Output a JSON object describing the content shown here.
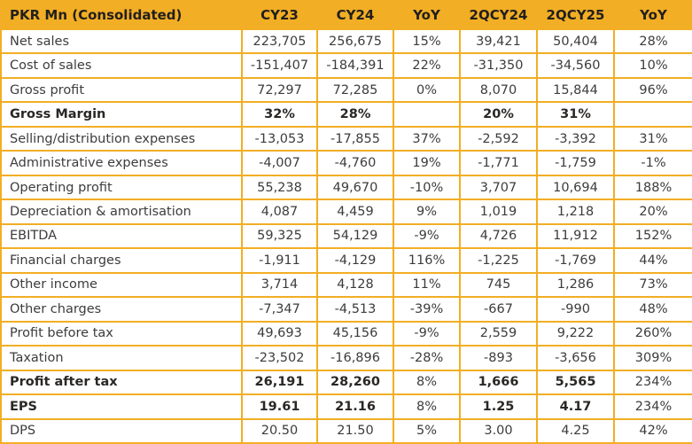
{
  "colors": {
    "gold_accent": "#F2AE24",
    "header_text": "#221F1D",
    "body_text": "#3C3C3C",
    "cell_background": "#FFFFFF"
  },
  "chart_data": {
    "type": "table",
    "title": "PKR Mn (Consolidated)",
    "columns": [
      "PKR Mn (Consolidated)",
      "CY23",
      "CY24",
      "YoY",
      "2QCY24",
      "2QCY25",
      "YoY"
    ],
    "rows": [
      {
        "label": "Net sales",
        "values": [
          "223,705",
          "256,675",
          "15%",
          "39,421",
          "50,404",
          "28%"
        ],
        "bold": false
      },
      {
        "label": "Cost of sales",
        "values": [
          "-151,407",
          "-184,391",
          "22%",
          "-31,350",
          "-34,560",
          "10%"
        ],
        "bold": false
      },
      {
        "label": "Gross profit",
        "values": [
          "72,297",
          "72,285",
          "0%",
          "8,070",
          "15,844",
          "96%"
        ],
        "bold": false
      },
      {
        "label": "Gross Margin",
        "values": [
          "32%",
          "28%",
          "",
          "20%",
          "31%",
          ""
        ],
        "bold": true
      },
      {
        "label": "Selling/distribution expenses",
        "values": [
          "-13,053",
          "-17,855",
          "37%",
          "-2,592",
          "-3,392",
          "31%"
        ],
        "bold": false
      },
      {
        "label": "Administrative expenses",
        "values": [
          "-4,007",
          "-4,760",
          "19%",
          "-1,771",
          "-1,759",
          "-1%"
        ],
        "bold": false
      },
      {
        "label": "Operating profit",
        "values": [
          "55,238",
          "49,670",
          "-10%",
          "3,707",
          "10,694",
          "188%"
        ],
        "bold": false
      },
      {
        "label": "Depreciation & amortisation",
        "values": [
          "4,087",
          "4,459",
          "9%",
          "1,019",
          "1,218",
          "20%"
        ],
        "bold": false
      },
      {
        "label": "EBITDA",
        "values": [
          "59,325",
          "54,129",
          "-9%",
          "4,726",
          "11,912",
          "152%"
        ],
        "bold": false
      },
      {
        "label": "Financial charges",
        "values": [
          "-1,911",
          "-4,129",
          "116%",
          "-1,225",
          "-1,769",
          "44%"
        ],
        "bold": false
      },
      {
        "label": "Other income",
        "values": [
          "3,714",
          "4,128",
          "11%",
          "745",
          "1,286",
          "73%"
        ],
        "bold": false
      },
      {
        "label": "Other charges",
        "values": [
          "-7,347",
          "-4,513",
          "-39%",
          "-667",
          "-990",
          "48%"
        ],
        "bold": false
      },
      {
        "label": "Profit before tax",
        "values": [
          "49,693",
          "45,156",
          "-9%",
          "2,559",
          "9,222",
          "260%"
        ],
        "bold": false
      },
      {
        "label": "Taxation",
        "values": [
          "-23,502",
          "-16,896",
          "-28%",
          "-893",
          "-3,656",
          "309%"
        ],
        "bold": false
      },
      {
        "label": "Profit after tax",
        "values": [
          "26,191",
          "28,260",
          "8%",
          "1,666",
          "5,565",
          "234%"
        ],
        "bold": true
      },
      {
        "label": "EPS",
        "values": [
          "19.61",
          "21.16",
          "8%",
          "1.25",
          "4.17",
          "234%"
        ],
        "bold": true
      },
      {
        "label": "DPS",
        "values": [
          "20.50",
          "21.50",
          "5%",
          "3.00",
          "4.25",
          "42%"
        ],
        "bold": false
      }
    ]
  }
}
